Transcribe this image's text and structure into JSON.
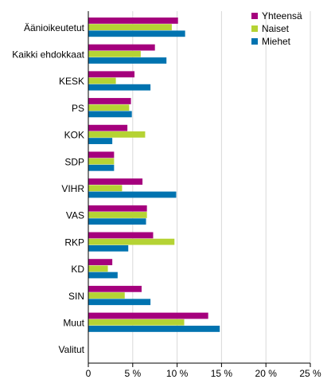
{
  "chart_data": {
    "type": "bar",
    "orientation": "horizontal",
    "categories": [
      "Äänioikeutetut",
      "Kaikki ehdokkaat",
      "KESK",
      "PS",
      "KOK",
      "SDP",
      "VIHR",
      "VAS",
      "RKP",
      "KD",
      "SIN",
      "Muut",
      "Valitut"
    ],
    "series": [
      {
        "name": "Yhteensä",
        "color": "#a5007d",
        "values": [
          10.1,
          7.5,
          5.2,
          4.8,
          4.4,
          2.9,
          6.1,
          6.6,
          7.3,
          2.7,
          6.0,
          13.5,
          0
        ]
      },
      {
        "name": "Naiset",
        "color": "#b5d334",
        "values": [
          9.4,
          5.9,
          3.1,
          4.6,
          6.4,
          2.9,
          3.8,
          6.6,
          9.7,
          2.2,
          4.1,
          10.8,
          0
        ]
      },
      {
        "name": "Miehet",
        "color": "#0073b0",
        "values": [
          10.9,
          8.8,
          7.0,
          4.9,
          2.7,
          2.9,
          9.9,
          6.5,
          4.5,
          3.3,
          7.0,
          14.8,
          0
        ]
      }
    ],
    "xlim": [
      0,
      25
    ],
    "xticks": [
      0,
      5,
      10,
      15,
      20,
      25
    ],
    "xtick_labels": [
      "0",
      "5 %",
      "10 %",
      "15 %",
      "20 %",
      "25 %"
    ],
    "grid": "vertical",
    "legend_position": "top-right"
  }
}
